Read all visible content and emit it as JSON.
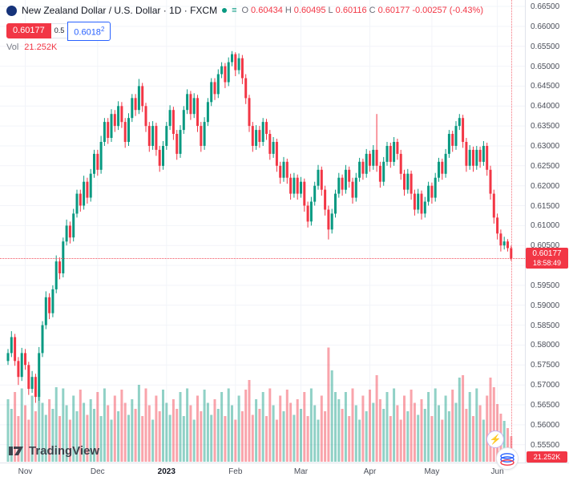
{
  "header": {
    "title_full": "New Zealand Dollar / U.S. Dollar · 1D · FXCM",
    "ohlc": {
      "o_label": "O",
      "o": "0.60434",
      "h_label": "H",
      "h": "0.60495",
      "l_label": "L",
      "l": "0.60116",
      "c_label": "C",
      "c": "0.60177",
      "change": "-0.00257 (-0.43%)"
    },
    "sell_price": "0.60177",
    "spread": "0.5",
    "buy_price": "0.6018",
    "buy_sup": "2",
    "vol_label": "Vol",
    "vol_value": "21.252K"
  },
  "price_tag": {
    "price": "0.60177",
    "countdown": "18:58:49"
  },
  "volume_tag": "21.252K",
  "watermark": "TradingView",
  "colors": {
    "up": "#089981",
    "down": "#f23645",
    "vol_up": "rgba(8,153,129,0.45)",
    "vol_down": "rgba(242,54,69,0.45)",
    "accent_blue": "#2962ff",
    "label_red": "#f23645",
    "grid": "#f2f4f9"
  },
  "chart_data": {
    "type": "candlestick_with_volume",
    "title": "New Zealand Dollar / U.S. Dollar, 1D, FXCM",
    "x_unit": "trading days, Nov 2022 - Jun 2023",
    "columns": [
      "open",
      "high",
      "low",
      "close",
      "volume_K"
    ],
    "y_axis": {
      "min": 0.555,
      "max": 0.665,
      "tick_step": 0.005,
      "tick_labels": [
        "0.66500",
        "0.66000",
        "0.65500",
        "0.65000",
        "0.64500",
        "0.64000",
        "0.63500",
        "0.63000",
        "0.62500",
        "0.62000",
        "0.61500",
        "0.61000",
        "0.60500",
        "0.60000",
        "0.59500",
        "0.59000",
        "0.58500",
        "0.58000",
        "0.57500",
        "0.57000",
        "0.56500",
        "0.56000",
        "0.55500"
      ]
    },
    "x_axis": {
      "months": [
        {
          "label": "Nov",
          "i": 5
        },
        {
          "label": "Dec",
          "i": 26
        },
        {
          "label": "2023",
          "i": 46,
          "bold": true
        },
        {
          "label": "Feb",
          "i": 66
        },
        {
          "label": "Mar",
          "i": 85
        },
        {
          "label": "Apr",
          "i": 105
        },
        {
          "label": "May",
          "i": 123
        },
        {
          "label": "Jun",
          "i": 142
        }
      ]
    },
    "last": {
      "open": 0.60434,
      "high": 0.60495,
      "low": 0.60116,
      "close": 0.60177,
      "change": -0.00257,
      "change_pct": -0.43,
      "volume_k": 21.252
    },
    "candles": [
      [
        0.576,
        0.579,
        0.575,
        0.578,
        52
      ],
      [
        0.578,
        0.5835,
        0.577,
        0.582,
        44
      ],
      [
        0.582,
        0.5828,
        0.5748,
        0.576,
        58
      ],
      [
        0.576,
        0.577,
        0.57,
        0.572,
        38
      ],
      [
        0.572,
        0.5793,
        0.571,
        0.578,
        61
      ],
      [
        0.578,
        0.579,
        0.5738,
        0.575,
        47
      ],
      [
        0.575,
        0.5758,
        0.5675,
        0.569,
        35
      ],
      [
        0.569,
        0.5735,
        0.568,
        0.572,
        55
      ],
      [
        0.572,
        0.5728,
        0.5655,
        0.567,
        42
      ],
      [
        0.567,
        0.5795,
        0.566,
        0.578,
        60
      ],
      [
        0.578,
        0.586,
        0.577,
        0.585,
        49
      ],
      [
        0.585,
        0.5935,
        0.584,
        0.592,
        39
      ],
      [
        0.592,
        0.593,
        0.5865,
        0.588,
        52
      ],
      [
        0.588,
        0.595,
        0.587,
        0.594,
        44
      ],
      [
        0.594,
        0.6025,
        0.593,
        0.601,
        62
      ],
      [
        0.601,
        0.602,
        0.5965,
        0.598,
        38
      ],
      [
        0.598,
        0.607,
        0.597,
        0.606,
        61
      ],
      [
        0.606,
        0.6115,
        0.605,
        0.61,
        47
      ],
      [
        0.61,
        0.611,
        0.6055,
        0.607,
        35
      ],
      [
        0.607,
        0.6142,
        0.606,
        0.613,
        55
      ],
      [
        0.613,
        0.619,
        0.612,
        0.618,
        42
      ],
      [
        0.618,
        0.619,
        0.6135,
        0.615,
        60
      ],
      [
        0.615,
        0.6225,
        0.614,
        0.621,
        49
      ],
      [
        0.621,
        0.622,
        0.6155,
        0.617,
        39
      ],
      [
        0.617,
        0.6242,
        0.616,
        0.623,
        52
      ],
      [
        0.623,
        0.629,
        0.622,
        0.628,
        44
      ],
      [
        0.628,
        0.629,
        0.6225,
        0.624,
        58
      ],
      [
        0.624,
        0.6325,
        0.623,
        0.631,
        38
      ],
      [
        0.631,
        0.637,
        0.63,
        0.636,
        61
      ],
      [
        0.636,
        0.637,
        0.6305,
        0.632,
        47
      ],
      [
        0.632,
        0.6392,
        0.631,
        0.638,
        35
      ],
      [
        0.638,
        0.639,
        0.6335,
        0.635,
        55
      ],
      [
        0.635,
        0.6412,
        0.634,
        0.64,
        42
      ],
      [
        0.64,
        0.641,
        0.6345,
        0.636,
        60
      ],
      [
        0.636,
        0.637,
        0.6295,
        0.631,
        49
      ],
      [
        0.631,
        0.6382,
        0.63,
        0.637,
        39
      ],
      [
        0.637,
        0.643,
        0.636,
        0.642,
        52
      ],
      [
        0.642,
        0.643,
        0.6375,
        0.639,
        44
      ],
      [
        0.639,
        0.6468,
        0.638,
        0.645,
        64
      ],
      [
        0.645,
        0.6458,
        0.6385,
        0.64,
        38
      ],
      [
        0.64,
        0.6408,
        0.6335,
        0.635,
        61
      ],
      [
        0.635,
        0.636,
        0.6285,
        0.63,
        47
      ],
      [
        0.63,
        0.6362,
        0.629,
        0.635,
        35
      ],
      [
        0.635,
        0.6358,
        0.6275,
        0.629,
        55
      ],
      [
        0.629,
        0.63,
        0.6235,
        0.625,
        42
      ],
      [
        0.625,
        0.6312,
        0.624,
        0.63,
        60
      ],
      [
        0.63,
        0.636,
        0.629,
        0.635,
        49
      ],
      [
        0.635,
        0.6402,
        0.634,
        0.639,
        39
      ],
      [
        0.639,
        0.6398,
        0.6315,
        0.633,
        52
      ],
      [
        0.633,
        0.634,
        0.6265,
        0.628,
        44
      ],
      [
        0.628,
        0.6352,
        0.627,
        0.634,
        58
      ],
      [
        0.634,
        0.64,
        0.633,
        0.639,
        38
      ],
      [
        0.639,
        0.6442,
        0.638,
        0.643,
        61
      ],
      [
        0.643,
        0.6438,
        0.6365,
        0.638,
        47
      ],
      [
        0.638,
        0.6432,
        0.637,
        0.642,
        35
      ],
      [
        0.642,
        0.6428,
        0.6335,
        0.635,
        55
      ],
      [
        0.635,
        0.636,
        0.6285,
        0.63,
        42
      ],
      [
        0.63,
        0.6372,
        0.629,
        0.636,
        60
      ],
      [
        0.636,
        0.642,
        0.635,
        0.641,
        49
      ],
      [
        0.641,
        0.647,
        0.64,
        0.646,
        39
      ],
      [
        0.646,
        0.647,
        0.6415,
        0.643,
        52
      ],
      [
        0.643,
        0.6492,
        0.642,
        0.648,
        44
      ],
      [
        0.648,
        0.651,
        0.647,
        0.65,
        58
      ],
      [
        0.65,
        0.6508,
        0.6445,
        0.646,
        38
      ],
      [
        0.646,
        0.6522,
        0.645,
        0.651,
        61
      ],
      [
        0.651,
        0.6538,
        0.65,
        0.653,
        47
      ],
      [
        0.653,
        0.6535,
        0.6475,
        0.649,
        35
      ],
      [
        0.649,
        0.6532,
        0.648,
        0.652,
        55
      ],
      [
        0.652,
        0.6528,
        0.6455,
        0.647,
        42
      ],
      [
        0.647,
        0.648,
        0.6405,
        0.642,
        60
      ],
      [
        0.642,
        0.6428,
        0.6335,
        0.635,
        68
      ],
      [
        0.635,
        0.636,
        0.6285,
        0.63,
        39
      ],
      [
        0.63,
        0.6352,
        0.629,
        0.634,
        52
      ],
      [
        0.634,
        0.635,
        0.6295,
        0.631,
        44
      ],
      [
        0.631,
        0.637,
        0.63,
        0.636,
        58
      ],
      [
        0.636,
        0.6368,
        0.6315,
        0.633,
        38
      ],
      [
        0.633,
        0.634,
        0.6265,
        0.628,
        61
      ],
      [
        0.628,
        0.6322,
        0.627,
        0.631,
        47
      ],
      [
        0.631,
        0.6318,
        0.6235,
        0.625,
        35
      ],
      [
        0.625,
        0.626,
        0.6205,
        0.622,
        55
      ],
      [
        0.622,
        0.6272,
        0.621,
        0.626,
        42
      ],
      [
        0.626,
        0.6268,
        0.6205,
        0.622,
        60
      ],
      [
        0.622,
        0.623,
        0.6165,
        0.618,
        49
      ],
      [
        0.618,
        0.6232,
        0.617,
        0.622,
        39
      ],
      [
        0.622,
        0.6228,
        0.6165,
        0.618,
        52
      ],
      [
        0.618,
        0.6222,
        0.617,
        0.621,
        44
      ],
      [
        0.621,
        0.6218,
        0.6135,
        0.615,
        58
      ],
      [
        0.615,
        0.616,
        0.6095,
        0.611,
        38
      ],
      [
        0.611,
        0.6172,
        0.61,
        0.616,
        61
      ],
      [
        0.616,
        0.621,
        0.615,
        0.62,
        47
      ],
      [
        0.62,
        0.6252,
        0.619,
        0.624,
        35
      ],
      [
        0.624,
        0.6248,
        0.6175,
        0.619,
        55
      ],
      [
        0.619,
        0.62,
        0.6125,
        0.614,
        42
      ],
      [
        0.614,
        0.615,
        0.6065,
        0.609,
        95
      ],
      [
        0.609,
        0.6142,
        0.608,
        0.613,
        76
      ],
      [
        0.613,
        0.619,
        0.612,
        0.618,
        58
      ],
      [
        0.618,
        0.6232,
        0.617,
        0.622,
        52
      ],
      [
        0.622,
        0.6228,
        0.6175,
        0.619,
        44
      ],
      [
        0.619,
        0.6252,
        0.618,
        0.624,
        58
      ],
      [
        0.624,
        0.6248,
        0.6195,
        0.621,
        38
      ],
      [
        0.621,
        0.622,
        0.6155,
        0.617,
        61
      ],
      [
        0.617,
        0.6232,
        0.616,
        0.622,
        47
      ],
      [
        0.622,
        0.627,
        0.621,
        0.626,
        35
      ],
      [
        0.626,
        0.6268,
        0.6215,
        0.623,
        55
      ],
      [
        0.623,
        0.6292,
        0.622,
        0.628,
        42
      ],
      [
        0.628,
        0.6288,
        0.6235,
        0.625,
        60
      ],
      [
        0.625,
        0.6302,
        0.624,
        0.629,
        49
      ],
      [
        0.629,
        0.638,
        0.6235,
        0.625,
        72
      ],
      [
        0.625,
        0.626,
        0.6195,
        0.621,
        52
      ],
      [
        0.621,
        0.6272,
        0.62,
        0.626,
        44
      ],
      [
        0.626,
        0.631,
        0.625,
        0.63,
        58
      ],
      [
        0.63,
        0.6308,
        0.6245,
        0.626,
        38
      ],
      [
        0.626,
        0.6322,
        0.625,
        0.631,
        61
      ],
      [
        0.631,
        0.6318,
        0.6265,
        0.628,
        47
      ],
      [
        0.628,
        0.629,
        0.6215,
        0.623,
        35
      ],
      [
        0.623,
        0.624,
        0.6175,
        0.619,
        55
      ],
      [
        0.619,
        0.6242,
        0.618,
        0.623,
        42
      ],
      [
        0.623,
        0.6238,
        0.6165,
        0.618,
        60
      ],
      [
        0.618,
        0.619,
        0.6125,
        0.614,
        49
      ],
      [
        0.614,
        0.6192,
        0.613,
        0.618,
        39
      ],
      [
        0.618,
        0.6188,
        0.6115,
        0.613,
        52
      ],
      [
        0.613,
        0.6172,
        0.612,
        0.616,
        44
      ],
      [
        0.616,
        0.621,
        0.615,
        0.62,
        58
      ],
      [
        0.62,
        0.6208,
        0.6155,
        0.617,
        38
      ],
      [
        0.617,
        0.6232,
        0.616,
        0.622,
        61
      ],
      [
        0.622,
        0.627,
        0.621,
        0.626,
        47
      ],
      [
        0.626,
        0.6268,
        0.6215,
        0.623,
        35
      ],
      [
        0.623,
        0.6292,
        0.622,
        0.628,
        55
      ],
      [
        0.628,
        0.634,
        0.627,
        0.633,
        42
      ],
      [
        0.633,
        0.6338,
        0.6285,
        0.63,
        60
      ],
      [
        0.63,
        0.6362,
        0.629,
        0.635,
        49
      ],
      [
        0.635,
        0.638,
        0.634,
        0.637,
        70
      ],
      [
        0.637,
        0.6378,
        0.6295,
        0.631,
        72
      ],
      [
        0.631,
        0.632,
        0.6235,
        0.625,
        44
      ],
      [
        0.625,
        0.6302,
        0.624,
        0.629,
        58
      ],
      [
        0.629,
        0.6298,
        0.6235,
        0.625,
        38
      ],
      [
        0.625,
        0.63,
        0.624,
        0.629,
        61
      ],
      [
        0.629,
        0.6298,
        0.6245,
        0.626,
        47
      ],
      [
        0.626,
        0.6312,
        0.625,
        0.63,
        35
      ],
      [
        0.63,
        0.6308,
        0.6225,
        0.624,
        55
      ],
      [
        0.624,
        0.625,
        0.6165,
        0.618,
        70
      ],
      [
        0.618,
        0.619,
        0.6105,
        0.612,
        62
      ],
      [
        0.612,
        0.613,
        0.6065,
        0.608,
        48
      ],
      [
        0.608,
        0.609,
        0.6035,
        0.605,
        40
      ],
      [
        0.605,
        0.6072,
        0.604,
        0.606,
        34
      ],
      [
        0.606,
        0.6066,
        0.6035,
        0.60434,
        28
      ],
      [
        0.60434,
        0.60495,
        0.60116,
        0.60177,
        21.252
      ]
    ]
  }
}
